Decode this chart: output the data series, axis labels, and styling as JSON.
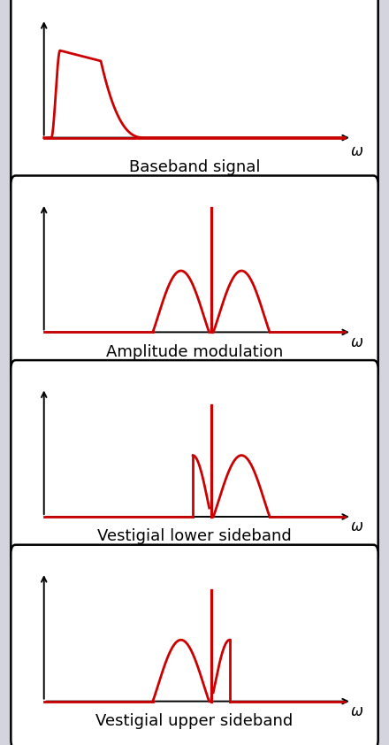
{
  "bg_color": "#d4d4de",
  "panel_bg": "#ffffff",
  "line_color": "#cc0000",
  "line_width": 2.0,
  "titles": [
    "Baseband signal",
    "Amplitude modulation",
    "Vestigial lower sideband",
    "Vestigial upper sideband"
  ],
  "omega_label": "ω",
  "title_fontsize": 13,
  "omega_fontsize": 12
}
